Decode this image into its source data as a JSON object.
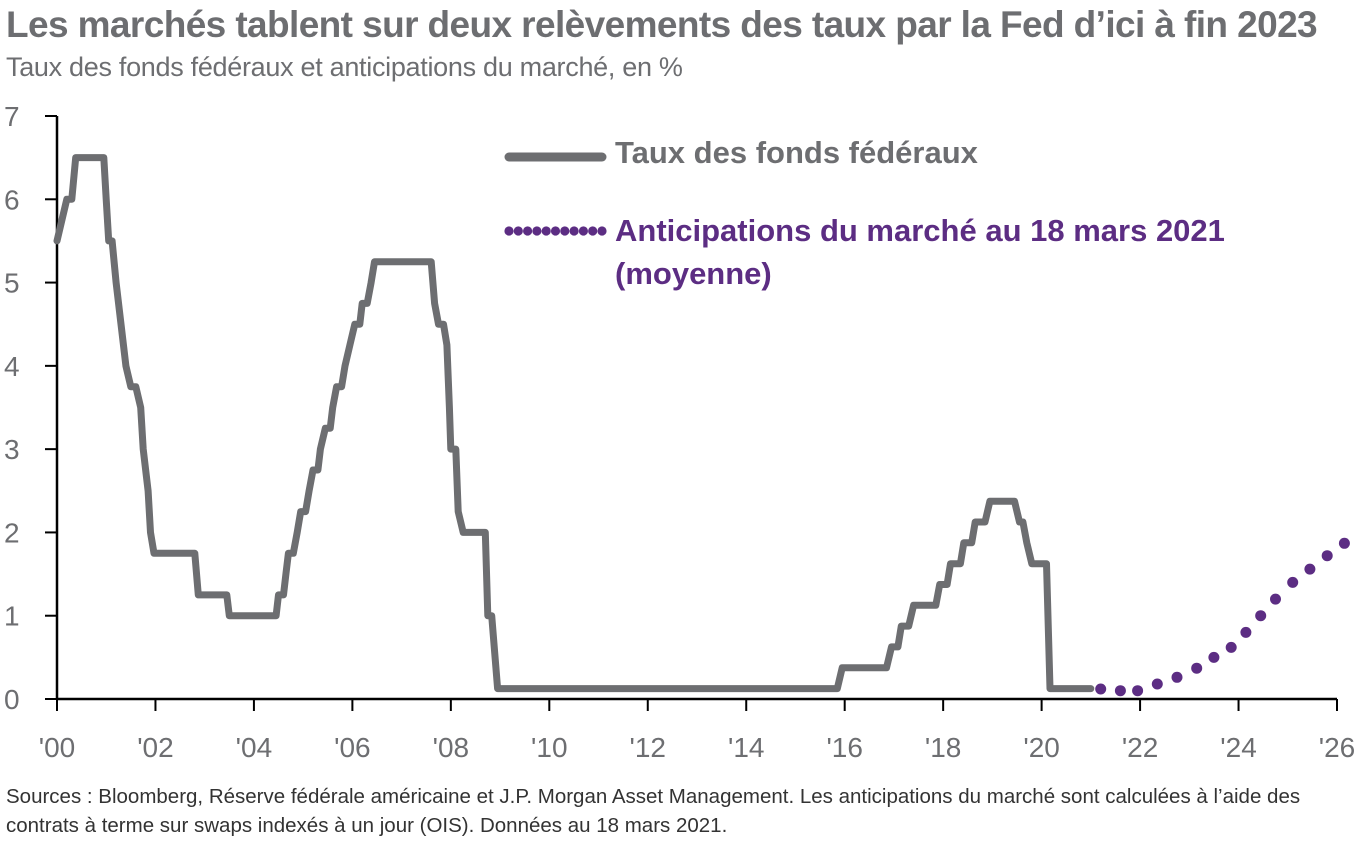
{
  "header": {
    "title": "Les marchés tablent sur deux relèvements des taux par la Fed d’ici à fin 2023",
    "subtitle": "Taux des fonds fédéraux et anticipations du marché, en %"
  },
  "footer": {
    "source": "Sources : Bloomberg, Réserve fédérale américaine et J.P. Morgan Asset Management. Les anticipations du marché sont calculées à l’aide des contrats à terme sur swaps indexés à un jour (OIS). Données au 18 mars 2021."
  },
  "colors": {
    "fed": "#6d6e71",
    "market": "#5c2d83",
    "axis": "#000000",
    "text": "#6d6e71"
  },
  "chart_data": {
    "type": "line",
    "grid": false,
    "legend_position": "top-right",
    "xlim": [
      2000,
      2026
    ],
    "ylim": [
      0,
      7
    ],
    "x_ticks": [
      2000,
      2002,
      2004,
      2006,
      2008,
      2010,
      2012,
      2014,
      2016,
      2018,
      2020,
      2022,
      2024,
      2026
    ],
    "x_tick_labels": [
      "'00",
      "'02",
      "'04",
      "'06",
      "'08",
      "'10",
      "'12",
      "'14",
      "'16",
      "'18",
      "'20",
      "'22",
      "'24",
      "'26"
    ],
    "y_ticks": [
      0,
      1,
      2,
      3,
      4,
      5,
      6,
      7
    ],
    "y_tick_labels": [
      "0",
      "1",
      "2",
      "3",
      "4",
      "5",
      "6",
      "7"
    ],
    "series": [
      {
        "name": "Taux des fonds fédéraux",
        "style": "solid",
        "points": [
          [
            2000.0,
            5.5
          ],
          [
            2000.1,
            5.75
          ],
          [
            2000.2,
            6.0
          ],
          [
            2000.3,
            6.0
          ],
          [
            2000.38,
            6.5
          ],
          [
            2000.95,
            6.5
          ],
          [
            2001.0,
            6.0
          ],
          [
            2001.05,
            5.5
          ],
          [
            2001.12,
            5.5
          ],
          [
            2001.2,
            5.0
          ],
          [
            2001.3,
            4.5
          ],
          [
            2001.4,
            4.0
          ],
          [
            2001.5,
            3.75
          ],
          [
            2001.6,
            3.75
          ],
          [
            2001.7,
            3.5
          ],
          [
            2001.75,
            3.0
          ],
          [
            2001.85,
            2.5
          ],
          [
            2001.9,
            2.0
          ],
          [
            2001.97,
            1.75
          ],
          [
            2002.8,
            1.75
          ],
          [
            2002.87,
            1.25
          ],
          [
            2003.45,
            1.25
          ],
          [
            2003.5,
            1.0
          ],
          [
            2004.45,
            1.0
          ],
          [
            2004.5,
            1.25
          ],
          [
            2004.6,
            1.25
          ],
          [
            2004.65,
            1.5
          ],
          [
            2004.7,
            1.75
          ],
          [
            2004.8,
            1.75
          ],
          [
            2004.88,
            2.0
          ],
          [
            2004.95,
            2.25
          ],
          [
            2005.05,
            2.25
          ],
          [
            2005.12,
            2.5
          ],
          [
            2005.2,
            2.75
          ],
          [
            2005.3,
            2.75
          ],
          [
            2005.35,
            3.0
          ],
          [
            2005.45,
            3.25
          ],
          [
            2005.55,
            3.25
          ],
          [
            2005.6,
            3.5
          ],
          [
            2005.68,
            3.75
          ],
          [
            2005.78,
            3.75
          ],
          [
            2005.85,
            4.0
          ],
          [
            2005.95,
            4.25
          ],
          [
            2006.05,
            4.5
          ],
          [
            2006.15,
            4.5
          ],
          [
            2006.2,
            4.75
          ],
          [
            2006.3,
            4.75
          ],
          [
            2006.38,
            5.0
          ],
          [
            2006.45,
            5.25
          ],
          [
            2007.6,
            5.25
          ],
          [
            2007.67,
            4.75
          ],
          [
            2007.75,
            4.5
          ],
          [
            2007.85,
            4.5
          ],
          [
            2007.92,
            4.25
          ],
          [
            2007.97,
            3.5
          ],
          [
            2008.0,
            3.0
          ],
          [
            2008.1,
            3.0
          ],
          [
            2008.15,
            2.25
          ],
          [
            2008.25,
            2.0
          ],
          [
            2008.7,
            2.0
          ],
          [
            2008.75,
            1.0
          ],
          [
            2008.83,
            1.0
          ],
          [
            2008.95,
            0.125
          ],
          [
            2015.85,
            0.125
          ],
          [
            2015.95,
            0.375
          ],
          [
            2016.85,
            0.375
          ],
          [
            2016.95,
            0.625
          ],
          [
            2017.08,
            0.625
          ],
          [
            2017.15,
            0.875
          ],
          [
            2017.3,
            0.875
          ],
          [
            2017.4,
            1.125
          ],
          [
            2017.85,
            1.125
          ],
          [
            2017.93,
            1.375
          ],
          [
            2018.08,
            1.375
          ],
          [
            2018.15,
            1.625
          ],
          [
            2018.35,
            1.625
          ],
          [
            2018.42,
            1.875
          ],
          [
            2018.58,
            1.875
          ],
          [
            2018.65,
            2.125
          ],
          [
            2018.85,
            2.125
          ],
          [
            2018.95,
            2.375
          ],
          [
            2019.45,
            2.375
          ],
          [
            2019.55,
            2.125
          ],
          [
            2019.62,
            2.125
          ],
          [
            2019.7,
            1.875
          ],
          [
            2019.8,
            1.625
          ],
          [
            2020.1,
            1.625
          ],
          [
            2020.17,
            0.125
          ],
          [
            2021.0,
            0.125
          ]
        ]
      },
      {
        "name": "Anticipations du marché au 18 mars 2021 (moyenne)",
        "style": "dotted",
        "points": [
          [
            2021.2,
            0.12
          ],
          [
            2021.6,
            0.1
          ],
          [
            2021.95,
            0.1
          ],
          [
            2022.35,
            0.18
          ],
          [
            2022.75,
            0.26
          ],
          [
            2023.15,
            0.37
          ],
          [
            2023.5,
            0.5
          ],
          [
            2023.85,
            0.62
          ],
          [
            2024.15,
            0.8
          ],
          [
            2024.45,
            1.0
          ],
          [
            2024.75,
            1.2
          ],
          [
            2025.1,
            1.4
          ],
          [
            2025.45,
            1.56
          ],
          [
            2025.8,
            1.72
          ],
          [
            2026.15,
            1.87
          ]
        ]
      }
    ],
    "legend": [
      {
        "label_lines": [
          "Taux des fonds fédéraux"
        ]
      },
      {
        "label_lines": [
          "Anticipations du marché au 18 mars 2021",
          "(moyenne)"
        ]
      }
    ]
  }
}
